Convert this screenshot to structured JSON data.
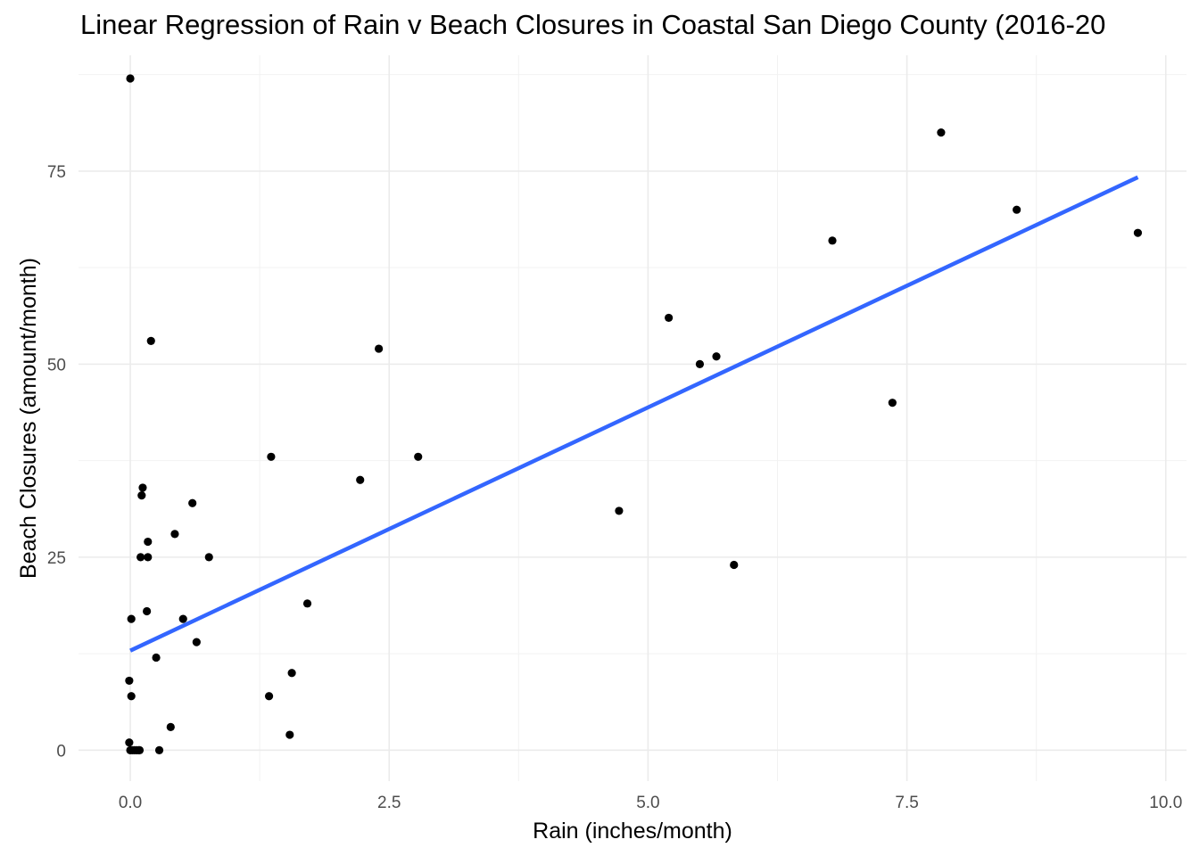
{
  "chart_data": {
    "type": "scatter",
    "title": "Linear Regression of Rain v Beach Closures in Coastal San Diego County (2016-20",
    "xlabel": "Rain (inches/month)",
    "ylabel": "Beach Closures (amount/month)",
    "xlim": [
      -0.5,
      10.2
    ],
    "ylim": [
      -4,
      90
    ],
    "x_ticks": [
      "0.0",
      "2.5",
      "5.0",
      "7.5",
      "10.0"
    ],
    "x_tick_values": [
      0,
      2.5,
      5,
      7.5,
      10
    ],
    "y_ticks": [
      "0",
      "25",
      "50",
      "75"
    ],
    "y_tick_values": [
      0,
      25,
      50,
      75
    ],
    "grid": true,
    "points": [
      {
        "x": 0.0,
        "y": 87
      },
      {
        "x": 7.83,
        "y": 80
      },
      {
        "x": 8.56,
        "y": 70
      },
      {
        "x": 9.73,
        "y": 67
      },
      {
        "x": 6.78,
        "y": 66
      },
      {
        "x": 5.2,
        "y": 56
      },
      {
        "x": 0.2,
        "y": 53
      },
      {
        "x": 2.4,
        "y": 52
      },
      {
        "x": 5.66,
        "y": 51
      },
      {
        "x": 5.5,
        "y": 50
      },
      {
        "x": 7.36,
        "y": 45
      },
      {
        "x": 1.36,
        "y": 38
      },
      {
        "x": 2.78,
        "y": 38
      },
      {
        "x": 2.22,
        "y": 35
      },
      {
        "x": 0.12,
        "y": 34
      },
      {
        "x": 0.11,
        "y": 33
      },
      {
        "x": 0.6,
        "y": 32
      },
      {
        "x": 4.72,
        "y": 31
      },
      {
        "x": 0.43,
        "y": 28
      },
      {
        "x": 0.17,
        "y": 27
      },
      {
        "x": 0.1,
        "y": 25
      },
      {
        "x": 0.17,
        "y": 25
      },
      {
        "x": 0.76,
        "y": 25
      },
      {
        "x": 5.83,
        "y": 24
      },
      {
        "x": 1.71,
        "y": 19
      },
      {
        "x": 0.16,
        "y": 18
      },
      {
        "x": 0.01,
        "y": 17
      },
      {
        "x": 0.51,
        "y": 17
      },
      {
        "x": 0.64,
        "y": 14
      },
      {
        "x": 0.25,
        "y": 12
      },
      {
        "x": 1.56,
        "y": 10
      },
      {
        "x": -0.01,
        "y": 9
      },
      {
        "x": 0.01,
        "y": 7
      },
      {
        "x": 1.34,
        "y": 7
      },
      {
        "x": 0.39,
        "y": 3
      },
      {
        "x": 1.54,
        "y": 2
      },
      {
        "x": -0.01,
        "y": 1
      },
      {
        "x": 0.0,
        "y": 0
      },
      {
        "x": 0.02,
        "y": 0
      },
      {
        "x": 0.04,
        "y": 0
      },
      {
        "x": 0.06,
        "y": 0
      },
      {
        "x": 0.08,
        "y": 0
      },
      {
        "x": 0.09,
        "y": 0
      },
      {
        "x": 0.28,
        "y": 0
      }
    ],
    "regression_line": {
      "color": "#3366ff",
      "x": [
        0.0,
        9.73
      ],
      "y": [
        12.9,
        74.2
      ]
    },
    "point_color": "#000000"
  }
}
